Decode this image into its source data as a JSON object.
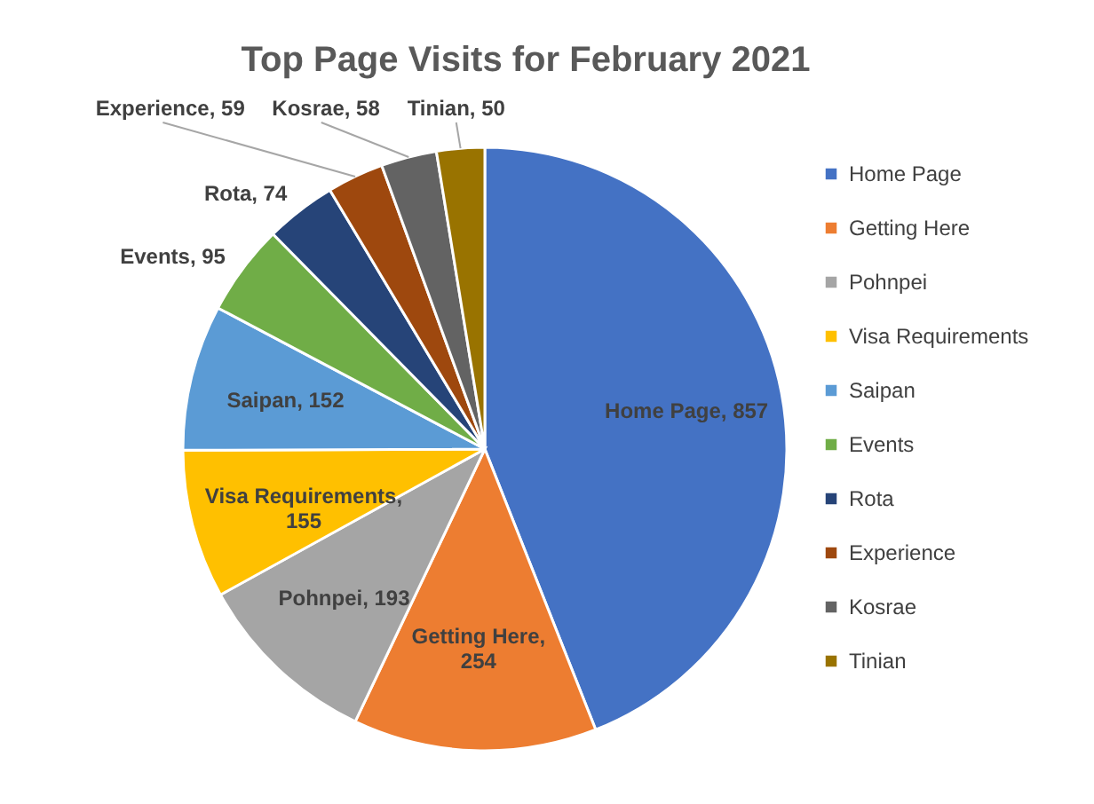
{
  "chart_data": {
    "type": "pie",
    "title": "Top Page Visits for February 2021",
    "categories": [
      "Home Page",
      "Getting Here",
      "Pohnpei",
      "Visa Requirements",
      "Saipan",
      "Events",
      "Rota",
      "Experience",
      "Kosrae",
      "Tinian"
    ],
    "values": [
      857,
      254,
      193,
      155,
      152,
      95,
      74,
      59,
      58,
      50
    ],
    "colors": [
      "#4472c4",
      "#ed7d31",
      "#a5a5a5",
      "#ffc000",
      "#5b9bd5",
      "#70ad47",
      "#264478",
      "#9e480e",
      "#636363",
      "#997300"
    ],
    "value_labels": [
      "Home Page, 857",
      "Getting Here, 254",
      "Pohnpei, 193",
      "Visa Requirements, 155",
      "Saipan, 152",
      "Events, 95",
      "Rota, 74",
      "Experience, 59",
      "Kosrae, 58",
      "Tinian, 50"
    ],
    "legend": "right"
  }
}
